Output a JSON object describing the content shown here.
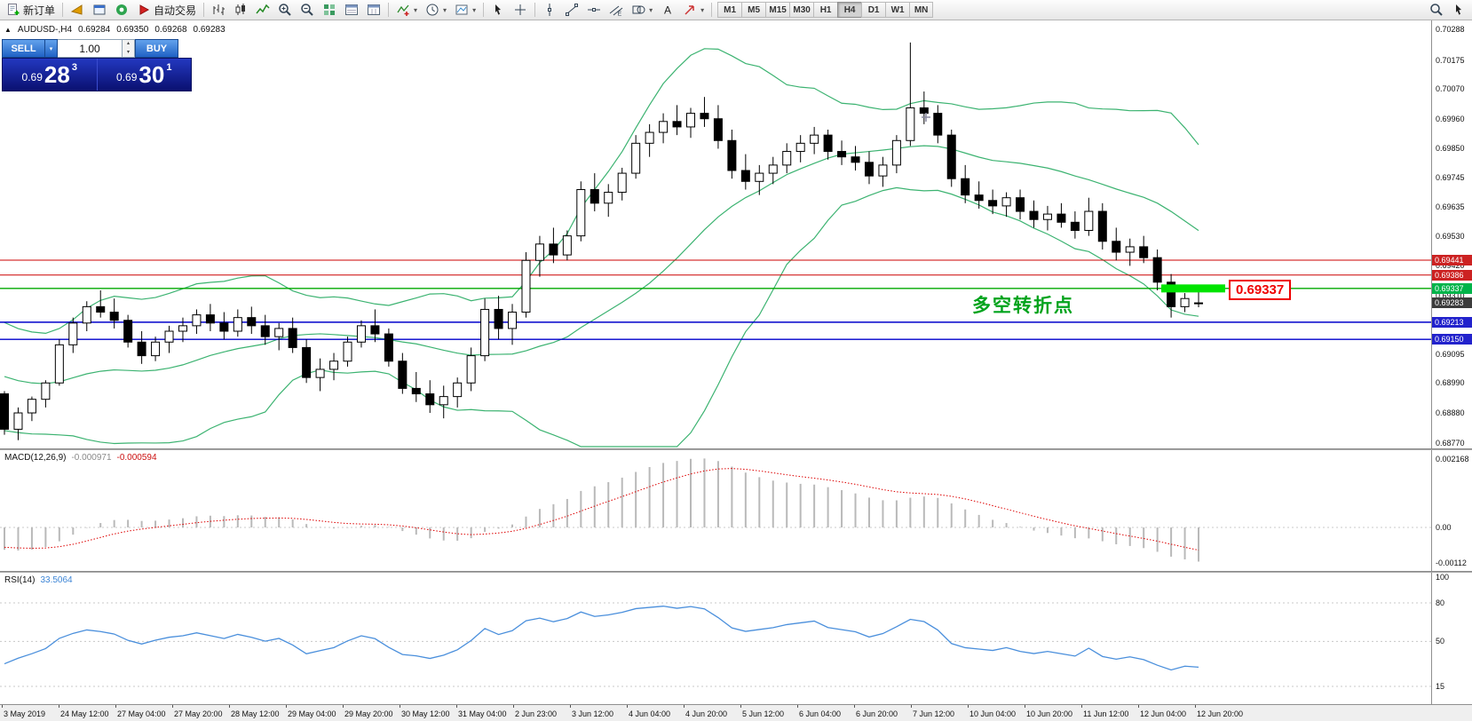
{
  "toolbar": {
    "new_order_label": "新订单",
    "auto_trading_label": "自动交易",
    "buttons": [
      {
        "name": "new-order-button",
        "icon": "doc",
        "label_key": "new_order_label"
      },
      {
        "sep": true
      },
      {
        "name": "metaeditor-button",
        "icon": "gold"
      },
      {
        "name": "chart-window-button",
        "icon": "bluewin"
      },
      {
        "name": "community-button",
        "icon": "headset"
      },
      {
        "name": "auto-trading-button",
        "icon": "autotrade",
        "label_key": "auto_trading_label"
      },
      {
        "sep": true
      },
      {
        "name": "bar-chart-button",
        "icon": "bars"
      },
      {
        "name": "candlestick-button",
        "icon": "candles"
      },
      {
        "name": "line-chart-button",
        "icon": "linechart"
      },
      {
        "name": "zoom-in-button",
        "icon": "zoomin"
      },
      {
        "name": "zoom-out-button",
        "icon": "zoomout"
      },
      {
        "name": "tile-windows-button",
        "icon": "grid"
      },
      {
        "name": "arrange-horizontal-button",
        "icon": "charth"
      },
      {
        "name": "arrange-vertical-button",
        "icon": "chartv"
      },
      {
        "sep": true
      },
      {
        "name": "indicators-button",
        "icon": "indicator",
        "dropdown": true
      },
      {
        "name": "periods-button",
        "icon": "clock",
        "dropdown": true
      },
      {
        "name": "templates-button",
        "icon": "template",
        "dropdown": true
      },
      {
        "sep": true
      },
      {
        "name": "cursor-button",
        "icon": "cursor"
      },
      {
        "name": "crosshair-button",
        "icon": "crosshair"
      },
      {
        "sep": true
      },
      {
        "name": "vertical-line-button",
        "icon": "vline"
      },
      {
        "name": "trendline-button",
        "icon": "trend"
      },
      {
        "name": "horizontal-line-button",
        "icon": "hline"
      },
      {
        "name": "channel-button",
        "icon": "channel"
      },
      {
        "name": "shapes-button",
        "icon": "shapes",
        "dropdown": true
      },
      {
        "name": "text-button",
        "icon": "text"
      },
      {
        "name": "arrows-button",
        "icon": "arrowsym",
        "dropdown": true
      },
      {
        "sep": true
      }
    ],
    "timeframes": [
      "M1",
      "M5",
      "M15",
      "M30",
      "H1",
      "H4",
      "D1",
      "W1",
      "MN"
    ],
    "active_timeframe": "H4",
    "right_buttons": [
      {
        "name": "search-button",
        "icon": "search"
      },
      {
        "name": "cursor-mode-button",
        "icon": "cursor"
      }
    ]
  },
  "glyphs": {
    "dropdown": "▾",
    "spin_up": "▴",
    "spin_down": "▾",
    "collapse": "▲"
  },
  "header_line": {
    "symbol_period": "AUDUSD-,H4",
    "open": "0.69284",
    "high": "0.69350",
    "low": "0.69268",
    "close": "0.69283"
  },
  "trade_panel": {
    "sell_label": "SELL",
    "buy_label": "BUY",
    "volume": "1.00",
    "sell_price_prefix": "0.69",
    "sell_price_big": "28",
    "sell_price_sup": "3",
    "buy_price_prefix": "0.69",
    "buy_price_big": "30",
    "buy_price_sup": "1"
  },
  "annotations": {
    "turning_point": "多空转折点",
    "highlight_price_label": "0.69337"
  },
  "colors": {
    "candle_up": "#ffffff",
    "candle_down": "#000000",
    "candle_border": "#000000",
    "bollinger": "#3CB371",
    "macd_hist": "#b9b9b9",
    "macd_signal": "#dd0000",
    "rsi_line": "#4a8fdc",
    "level_dotted": "#c8c8c8",
    "line_red": "#cc0000",
    "line_green": "#00a800",
    "line_blue": "#0000cc",
    "highlight_green": "#00e400",
    "tag_red": "#cc2222",
    "tag_green": "#00b44a",
    "tag_blue": "#2222cc",
    "tag_dark": "#3c3c3c"
  },
  "chart_data": {
    "type": "candlestick",
    "symbol": "AUDUSD-",
    "period": "H4",
    "visible_price_range": [
      0.6877,
      0.70288
    ],
    "overlays": {
      "bollinger_period": 20,
      "bollinger_deviation": 2
    },
    "warmup_closes": [
      0.6925,
      0.6918,
      0.691,
      0.6905,
      0.6898,
      0.6892,
      0.6898,
      0.6906,
      0.6912,
      0.6918,
      0.6914,
      0.6908,
      0.6902,
      0.6896,
      0.689,
      0.6886,
      0.6892,
      0.6899,
      0.6903,
      0.6898
    ],
    "candles": [
      [
        0.6895,
        0.6896,
        0.688,
        0.6882
      ],
      [
        0.6882,
        0.689,
        0.6878,
        0.6888
      ],
      [
        0.6888,
        0.6894,
        0.6885,
        0.6893
      ],
      [
        0.6893,
        0.69,
        0.689,
        0.6899
      ],
      [
        0.6899,
        0.6915,
        0.6898,
        0.6913
      ],
      [
        0.6913,
        0.6923,
        0.691,
        0.6921
      ],
      [
        0.6921,
        0.6929,
        0.6918,
        0.6927
      ],
      [
        0.6927,
        0.6933,
        0.6923,
        0.6925
      ],
      [
        0.6925,
        0.693,
        0.6919,
        0.6922
      ],
      [
        0.6922,
        0.6924,
        0.6912,
        0.6914
      ],
      [
        0.6914,
        0.6918,
        0.6906,
        0.6909
      ],
      [
        0.6909,
        0.6916,
        0.6907,
        0.6914
      ],
      [
        0.6914,
        0.692,
        0.691,
        0.6918
      ],
      [
        0.6918,
        0.6923,
        0.6914,
        0.692
      ],
      [
        0.692,
        0.6926,
        0.6917,
        0.6924
      ],
      [
        0.6924,
        0.6928,
        0.6918,
        0.6921
      ],
      [
        0.6921,
        0.6925,
        0.6915,
        0.6918
      ],
      [
        0.6918,
        0.6926,
        0.6916,
        0.6923
      ],
      [
        0.6923,
        0.6927,
        0.6917,
        0.692
      ],
      [
        0.692,
        0.6924,
        0.6913,
        0.6916
      ],
      [
        0.6916,
        0.6921,
        0.6911,
        0.6919
      ],
      [
        0.6919,
        0.6923,
        0.691,
        0.6912
      ],
      [
        0.6912,
        0.6915,
        0.6899,
        0.6901
      ],
      [
        0.6901,
        0.6908,
        0.6896,
        0.6904
      ],
      [
        0.6904,
        0.691,
        0.69,
        0.6907
      ],
      [
        0.6907,
        0.6916,
        0.6905,
        0.6914
      ],
      [
        0.6914,
        0.6922,
        0.6912,
        0.692
      ],
      [
        0.692,
        0.6926,
        0.6914,
        0.6917
      ],
      [
        0.6917,
        0.6919,
        0.6905,
        0.6907
      ],
      [
        0.6907,
        0.691,
        0.6895,
        0.6897
      ],
      [
        0.6897,
        0.6903,
        0.6892,
        0.6895
      ],
      [
        0.6895,
        0.69,
        0.6888,
        0.6891
      ],
      [
        0.6891,
        0.6898,
        0.6886,
        0.6894
      ],
      [
        0.6894,
        0.6901,
        0.689,
        0.6899
      ],
      [
        0.6899,
        0.6912,
        0.6896,
        0.6909
      ],
      [
        0.6909,
        0.693,
        0.6907,
        0.6926
      ],
      [
        0.6926,
        0.6931,
        0.6915,
        0.6919
      ],
      [
        0.6919,
        0.6928,
        0.6913,
        0.6925
      ],
      [
        0.6925,
        0.6947,
        0.6923,
        0.6944
      ],
      [
        0.6944,
        0.6953,
        0.6938,
        0.695
      ],
      [
        0.695,
        0.6956,
        0.6943,
        0.6946
      ],
      [
        0.6946,
        0.6955,
        0.6944,
        0.6953
      ],
      [
        0.6953,
        0.6973,
        0.6951,
        0.697
      ],
      [
        0.697,
        0.6976,
        0.6962,
        0.6965
      ],
      [
        0.6965,
        0.6972,
        0.696,
        0.6969
      ],
      [
        0.6969,
        0.6978,
        0.6966,
        0.6976
      ],
      [
        0.6976,
        0.699,
        0.6974,
        0.6987
      ],
      [
        0.6987,
        0.6994,
        0.6982,
        0.6991
      ],
      [
        0.6991,
        0.6998,
        0.6987,
        0.6995
      ],
      [
        0.6995,
        0.7001,
        0.699,
        0.6993
      ],
      [
        0.6993,
        0.7,
        0.6989,
        0.6998
      ],
      [
        0.6998,
        0.7004,
        0.6993,
        0.6996
      ],
      [
        0.6996,
        0.7001,
        0.6985,
        0.6988
      ],
      [
        0.6988,
        0.6992,
        0.6974,
        0.6977
      ],
      [
        0.6977,
        0.6983,
        0.697,
        0.6973
      ],
      [
        0.6973,
        0.6979,
        0.6968,
        0.6976
      ],
      [
        0.6976,
        0.6982,
        0.6972,
        0.6979
      ],
      [
        0.6979,
        0.6987,
        0.6976,
        0.6984
      ],
      [
        0.6984,
        0.699,
        0.698,
        0.6987
      ],
      [
        0.6987,
        0.6993,
        0.6983,
        0.699
      ],
      [
        0.699,
        0.6992,
        0.6981,
        0.6984
      ],
      [
        0.6984,
        0.6988,
        0.6979,
        0.6982
      ],
      [
        0.6982,
        0.6986,
        0.6977,
        0.698
      ],
      [
        0.698,
        0.6984,
        0.6972,
        0.6975
      ],
      [
        0.6975,
        0.6982,
        0.6971,
        0.6979
      ],
      [
        0.6979,
        0.699,
        0.6976,
        0.6988
      ],
      [
        0.6988,
        0.7024,
        0.6986,
        0.7
      ],
      [
        0.7,
        0.7006,
        0.6994,
        0.6998
      ],
      [
        0.6998,
        0.7001,
        0.6987,
        0.699
      ],
      [
        0.699,
        0.6992,
        0.6971,
        0.6974
      ],
      [
        0.6974,
        0.6979,
        0.6965,
        0.6968
      ],
      [
        0.6968,
        0.6973,
        0.6963,
        0.6966
      ],
      [
        0.6966,
        0.697,
        0.6961,
        0.6964
      ],
      [
        0.6964,
        0.6969,
        0.696,
        0.6967
      ],
      [
        0.6967,
        0.697,
        0.6959,
        0.6962
      ],
      [
        0.6962,
        0.6966,
        0.6956,
        0.6959
      ],
      [
        0.6959,
        0.6964,
        0.6955,
        0.6961
      ],
      [
        0.6961,
        0.6965,
        0.6956,
        0.6958
      ],
      [
        0.6958,
        0.6962,
        0.6952,
        0.6955
      ],
      [
        0.6955,
        0.6967,
        0.6953,
        0.6962
      ],
      [
        0.6962,
        0.6965,
        0.6948,
        0.6951
      ],
      [
        0.6951,
        0.6956,
        0.6944,
        0.6947
      ],
      [
        0.6947,
        0.6952,
        0.6942,
        0.6949
      ],
      [
        0.6949,
        0.6953,
        0.6943,
        0.6945
      ],
      [
        0.6945,
        0.6948,
        0.6933,
        0.6936
      ],
      [
        0.6936,
        0.6939,
        0.6923,
        0.6927
      ],
      [
        0.6927,
        0.6932,
        0.6925,
        0.693
      ],
      [
        0.69284,
        0.6935,
        0.69268,
        0.69283
      ]
    ],
    "horizontal_lines": [
      {
        "price": 0.69441,
        "color": "#cc0000",
        "width": 1
      },
      {
        "price": 0.69386,
        "color": "#cc0000",
        "width": 1
      },
      {
        "price": 0.69337,
        "color": "#00a800",
        "width": 1.4
      },
      {
        "price": 0.69213,
        "color": "#0000cc",
        "width": 1.4
      },
      {
        "price": 0.6915,
        "color": "#0000cc",
        "width": 1.4
      }
    ],
    "highlight_box": {
      "price": 0.69337,
      "label": "0.69337"
    },
    "price_tags": [
      {
        "text": "0.69441",
        "bg": "tag_red"
      },
      {
        "text": "0.69386",
        "bg": "tag_red"
      },
      {
        "text": "0.69337",
        "bg": "tag_green"
      },
      {
        "text": "0.69283",
        "bg": "tag_dark"
      },
      {
        "text": "0.69213",
        "bg": "tag_blue"
      },
      {
        "text": "0.69150",
        "bg": "tag_blue"
      }
    ],
    "axis_ticks": [
      "0.70288",
      "0.70175",
      "0.70070",
      "0.69960",
      "0.69850",
      "0.69745",
      "0.69635",
      "0.69530",
      "0.69420",
      "0.69310",
      "0.69095",
      "0.68990",
      "0.68880",
      "0.68770"
    ],
    "macd": {
      "label": "MACD(12,26,9)",
      "main_value": "-0.000971",
      "signal_value": "-0.000594",
      "params": [
        12,
        26,
        9
      ],
      "axis": [
        {
          "text": "0.002168",
          "value": 0.002168
        },
        {
          "text": "0.00",
          "value": 0
        },
        {
          "text": "-0.00112",
          "value": -0.00112
        }
      ]
    },
    "rsi": {
      "label": "RSI(14)",
      "value": "33.5064",
      "period": 14,
      "axis": [
        {
          "text": "100",
          "value": 100
        },
        {
          "text": "80",
          "value": 80
        },
        {
          "text": "50",
          "value": 50
        },
        {
          "text": "15",
          "value": 15
        }
      ],
      "levels": [
        80,
        50,
        15
      ]
    },
    "time_labels": [
      "3 May 2019",
      "24 May 12:00",
      "27 May 04:00",
      "27 May 20:00",
      "28 May 12:00",
      "29 May 04:00",
      "29 May 20:00",
      "30 May 12:00",
      "31 May 04:00",
      "2 Jun 23:00",
      "3 Jun 12:00",
      "4 Jun 04:00",
      "4 Jun 20:00",
      "5 Jun 12:00",
      "6 Jun 04:00",
      "6 Jun 20:00",
      "7 Jun 12:00",
      "10 Jun 04:00",
      "10 Jun 20:00",
      "11 Jun 12:00",
      "12 Jun 04:00",
      "12 Jun 20:00"
    ]
  }
}
